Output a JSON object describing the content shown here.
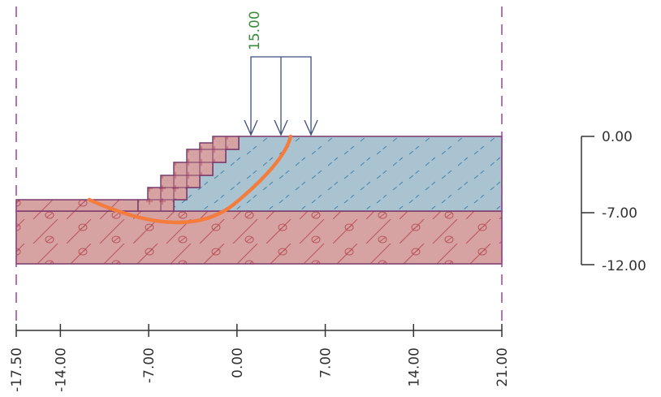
{
  "load": {
    "value_label": "15.00",
    "value": 15.0
  },
  "x_axis": {
    "ticks": [
      {
        "value": -17.5,
        "label": "-17.50"
      },
      {
        "value": -14.0,
        "label": "-14.00"
      },
      {
        "value": -7.0,
        "label": "-7.00"
      },
      {
        "value": 0.0,
        "label": "0.00"
      },
      {
        "value": 7.0,
        "label": "7.00"
      },
      {
        "value": 14.0,
        "label": "14.00"
      },
      {
        "value": 21.0,
        "label": "21.00"
      }
    ]
  },
  "depth_scale": {
    "top_label": "0.00",
    "mid_label": "-7.00",
    "bottom_label": "-12.00"
  },
  "colors": {
    "boundary_dash": "#a0449a",
    "soil_outline": "#7a3a6e",
    "embankment_fill": "#a9c3d1",
    "clay_fill": "#d7a2a2",
    "slip_surface": "#f47c3c",
    "load_arrow": "#3c4e7a",
    "load_text": "#3a8a3a"
  }
}
